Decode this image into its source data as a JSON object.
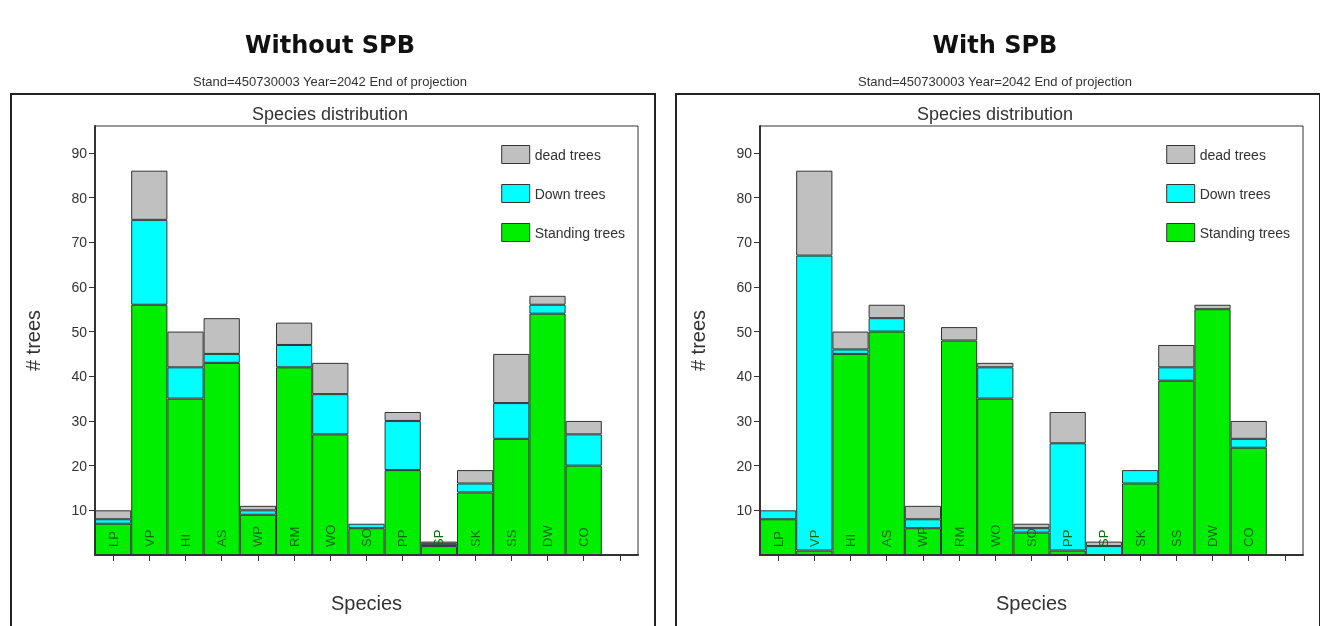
{
  "chart_data": [
    {
      "type": "bar",
      "title": "Without SPB",
      "subtitle": "Stand=450730003 Year=2042 End of projection",
      "annotations": [
        "Species distribution"
      ],
      "xlabel": "Species",
      "ylabel": "# trees",
      "categories": [
        "LP",
        "VP",
        "HI",
        "AS",
        "WP",
        "RM",
        "WO",
        "SO",
        "PP",
        "SP",
        "SK",
        "SS",
        "DW",
        "CO",
        null
      ],
      "stacked": true,
      "legend": "top right",
      "grid": false,
      "ylim": [
        0,
        96
      ],
      "yticks": [
        10,
        20,
        30,
        40,
        50,
        60,
        70,
        80,
        90
      ],
      "series": [
        {
          "name": "Standing trees",
          "color": "#00ee00",
          "values": [
            7,
            56,
            35,
            43,
            9,
            42,
            27,
            6,
            19,
            2,
            14,
            26,
            54,
            20,
            null
          ]
        },
        {
          "name": "Down trees",
          "color": "#00ffff",
          "values": [
            1,
            19,
            7,
            2,
            1,
            5,
            9,
            1,
            11,
            0.5,
            2,
            8,
            2,
            7,
            null
          ]
        },
        {
          "name": "dead trees",
          "color": "#c0c0c0",
          "values": [
            2,
            11,
            8,
            8,
            1,
            5,
            7,
            0,
            2,
            0.5,
            3,
            11,
            2,
            3,
            null
          ]
        }
      ]
    },
    {
      "type": "bar",
      "title": "With SPB",
      "subtitle": "Stand=450730003 Year=2042 End of projection",
      "annotations": [
        "Species distribution"
      ],
      "xlabel": "Species",
      "ylabel": "# trees",
      "categories": [
        "LP",
        "VP",
        "HI",
        "AS",
        "WP",
        "RM",
        "WO",
        "SO",
        "PP",
        "SP",
        "SK",
        "SS",
        "DW",
        "CO",
        null
      ],
      "stacked": true,
      "legend": "top right",
      "grid": false,
      "ylim": [
        0,
        96
      ],
      "yticks": [
        10,
        20,
        30,
        40,
        50,
        60,
        70,
        80,
        90
      ],
      "series": [
        {
          "name": "Standing trees",
          "color": "#00ee00",
          "values": [
            8,
            1,
            45,
            50,
            6,
            48,
            35,
            5,
            1,
            0,
            16,
            39,
            55,
            24,
            null
          ]
        },
        {
          "name": "Down trees",
          "color": "#00ffff",
          "values": [
            2,
            66,
            1,
            3,
            2,
            0,
            7,
            1,
            24,
            2,
            3,
            3,
            0,
            2,
            null
          ]
        },
        {
          "name": "dead trees",
          "color": "#c0c0c0",
          "values": [
            0,
            19,
            4,
            3,
            3,
            3,
            1,
            1,
            7,
            1,
            0,
            5,
            1,
            4,
            null
          ]
        }
      ]
    }
  ]
}
